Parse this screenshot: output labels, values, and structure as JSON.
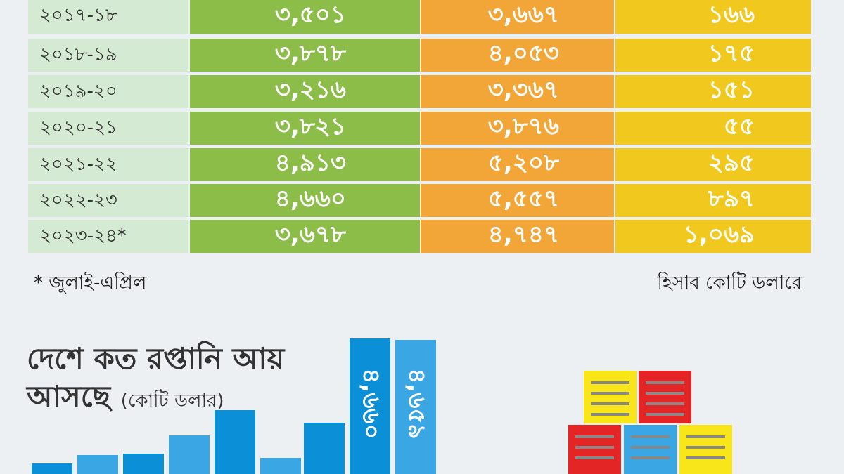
{
  "table": {
    "rows": [
      [
        "২০১৭-১৮",
        "৩,৫০১",
        "৩,৬৬৭",
        "১৬৬"
      ],
      [
        "২০১৮-১৯",
        "৩,৮৭৮",
        "৪,০৫৩",
        "১৭৫"
      ],
      [
        "২০১৯-২০",
        "৩,২১৬",
        "৩,৩৬৭",
        "১৫১"
      ],
      [
        "২০২০-২১",
        "৩,৮২১",
        "৩,৮৭৬",
        "৫৫"
      ],
      [
        "২০২১-২২",
        "৪,৯১৩",
        "৫,২০৮",
        "২৯৫"
      ],
      [
        "২০২২-২৩",
        "৪,৬৬০",
        "৫,৫৫৭",
        "৮৯৭"
      ],
      [
        "২০২৩-২৪*",
        "৩,৬৭৮",
        "৪,৭৪৭",
        "১,০৬৯"
      ]
    ]
  },
  "footnote": "* জুলাই-এপ্রিল",
  "unit_note": "হিসাব কোটি ডলারে",
  "bar_section": {
    "title": "দেশে কত রপ্তানি আয়",
    "title_line2": "আসছে",
    "unit": "(কোটি ডলার)",
    "bar_labels": [
      "৪,৬৬০",
      "৪,৬৫৯"
    ]
  }
}
